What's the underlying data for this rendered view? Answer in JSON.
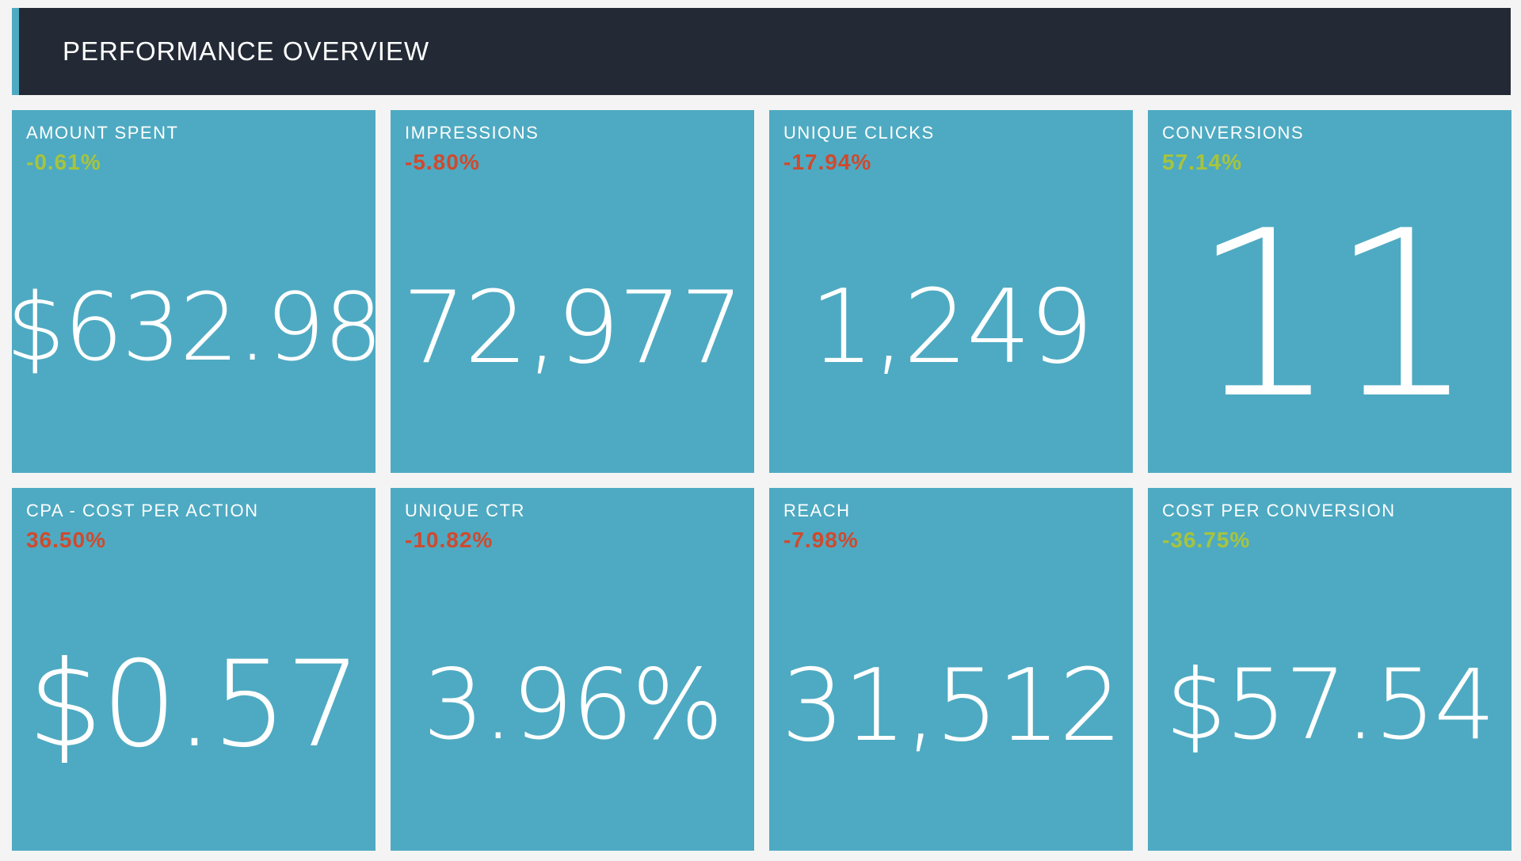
{
  "header": {
    "title": "PERFORMANCE OVERVIEW",
    "accent_color": "#4eaac2",
    "background_color": "#232a36"
  },
  "colors": {
    "tile_background": "#4eaac2",
    "positive_change": "#a7c43d",
    "negative_change": "#cf4a2e"
  },
  "tiles": [
    {
      "label": "AMOUNT SPENT",
      "change": "-0.61%",
      "change_status": "good",
      "value": "$632.98"
    },
    {
      "label": "IMPRESSIONS",
      "change": "-5.80%",
      "change_status": "bad",
      "value": "72,977"
    },
    {
      "label": "UNIQUE CLICKS",
      "change": "-17.94%",
      "change_status": "bad",
      "value": "1,249"
    },
    {
      "label": "CONVERSIONS",
      "change": "57.14%",
      "change_status": "good",
      "value": "11"
    },
    {
      "label": "CPA - COST PER ACTION",
      "change": "36.50%",
      "change_status": "bad",
      "value": "$0.57"
    },
    {
      "label": "UNIQUE CTR",
      "change": "-10.82%",
      "change_status": "bad",
      "value": "3.96%"
    },
    {
      "label": "REACH",
      "change": "-7.98%",
      "change_status": "bad",
      "value": "31,512"
    },
    {
      "label": "COST PER CONVERSION",
      "change": "-36.75%",
      "change_status": "good",
      "value": "$57.54"
    }
  ]
}
